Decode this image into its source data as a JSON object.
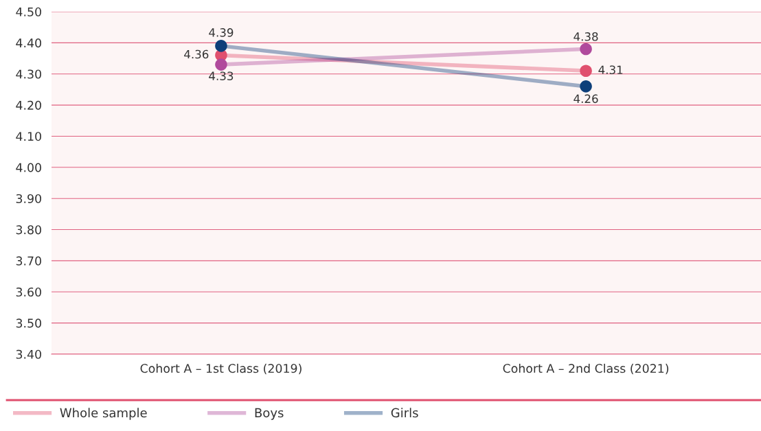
{
  "chart_data": {
    "type": "line",
    "categories": [
      "Cohort A – 1st Class (2019)",
      "Cohort A – 2nd Class (2021)"
    ],
    "series": [
      {
        "name": "Whole sample",
        "color": "#e0506e",
        "values": [
          4.36,
          4.31
        ]
      },
      {
        "name": "Boys",
        "color": "#b04a9c",
        "values": [
          4.33,
          4.38
        ]
      },
      {
        "name": "Girls",
        "color": "#0e3f7a",
        "values": [
          4.39,
          4.26
        ]
      }
    ],
    "ylim": [
      3.4,
      4.5
    ],
    "yticks": [
      {
        "value": 3.4,
        "label": "3.40"
      },
      {
        "value": 3.5,
        "label": "3.50"
      },
      {
        "value": 3.6,
        "label": "3.60"
      },
      {
        "value": 3.7,
        "label": "3.70"
      },
      {
        "value": 3.8,
        "label": "3.80"
      },
      {
        "value": 3.9,
        "label": "3.90"
      },
      {
        "value": 4.0,
        "label": "4.00"
      },
      {
        "value": 4.1,
        "label": "4.10"
      },
      {
        "value": 4.2,
        "label": "4.20"
      },
      {
        "value": 4.3,
        "label": "4.30"
      },
      {
        "value": 4.4,
        "label": "4.40"
      },
      {
        "value": 4.5,
        "label": "4.50"
      }
    ],
    "grid": "y",
    "legend": "bottom left",
    "marker": "circle",
    "line_style": "solid",
    "data_labels": true
  }
}
